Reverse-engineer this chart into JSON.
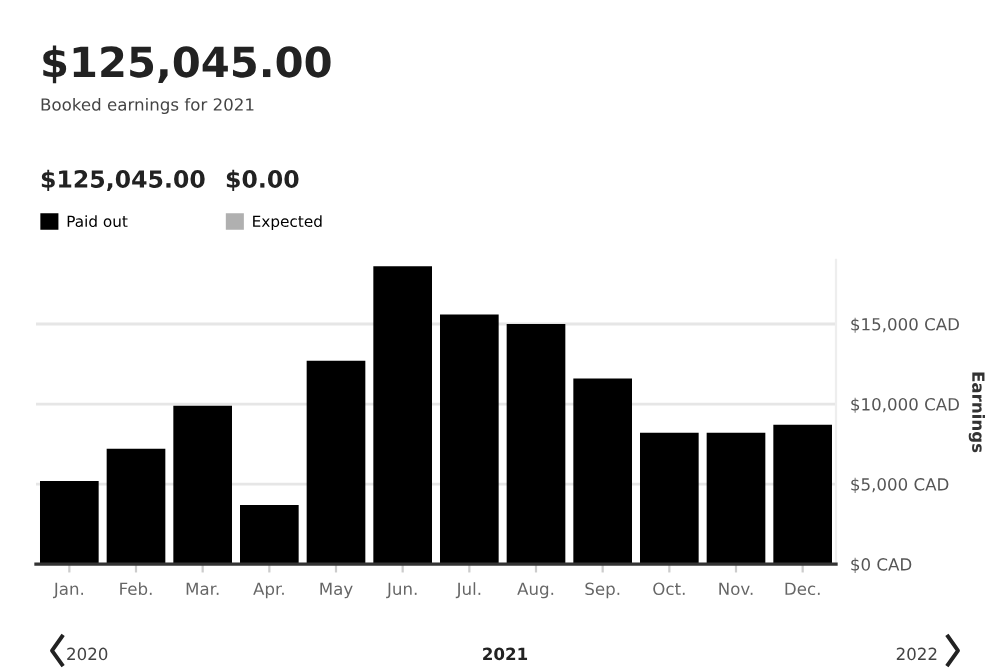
{
  "chart_data": {
    "type": "bar",
    "title": "$125,045.00",
    "subtitle": "Booked earnings for 2021",
    "y2label": "Earnings",
    "categories": [
      "Jan.",
      "Feb.",
      "Mar.",
      "Apr.",
      "May",
      "Jun.",
      "Jul.",
      "Aug.",
      "Sep.",
      "Oct.",
      "Nov.",
      "Dec."
    ],
    "series": [
      {
        "name": "Paid out",
        "color": "#000000",
        "values": [
          5200,
          7200,
          9900,
          3700,
          12700,
          18600,
          15600,
          15000,
          11600,
          8200,
          8200,
          8700
        ]
      },
      {
        "name": "Expected",
        "color": "#b0b0b0",
        "values": [
          0,
          0,
          0,
          0,
          0,
          0,
          0,
          0,
          0,
          0,
          0,
          0
        ]
      }
    ],
    "ylim": [
      0,
      19000
    ],
    "yticks": [
      {
        "value": 0,
        "label": "$0 CAD"
      },
      {
        "value": 5000,
        "label": "$5,000 CAD"
      },
      {
        "value": 10000,
        "label": "$10,000 CAD"
      },
      {
        "value": 15000,
        "label": "$15,000 CAD"
      }
    ],
    "grid": "y",
    "legend": "top left",
    "annotations": [
      "$125,045.00",
      "$0.00",
      "2020",
      "2021",
      "2022"
    ]
  }
}
